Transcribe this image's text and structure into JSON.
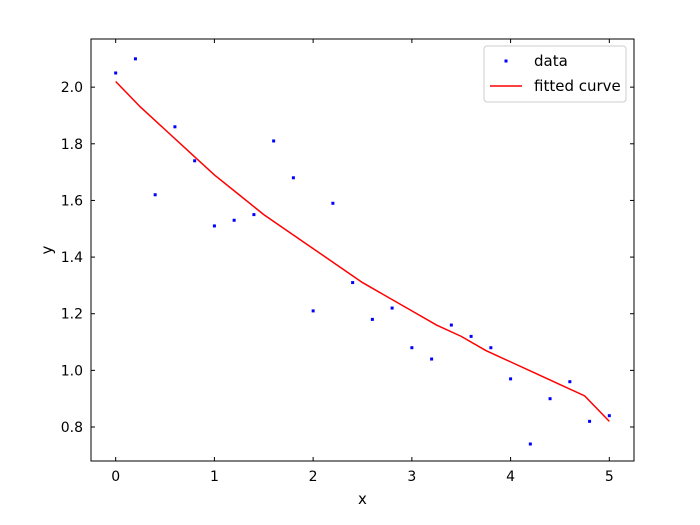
{
  "chart_data": {
    "type": "scatter",
    "xlabel": "x",
    "ylabel": "y",
    "xlim": [
      -0.25,
      5.25
    ],
    "ylim": [
      0.68,
      2.17
    ],
    "xticks": [
      0,
      1,
      2,
      3,
      4,
      5
    ],
    "yticks": [
      0.8,
      1.0,
      1.2,
      1.4,
      1.6,
      1.8,
      2.0
    ],
    "xtick_labels": [
      "0",
      "1",
      "2",
      "3",
      "4",
      "5"
    ],
    "ytick_labels": [
      "0.8",
      "1.0",
      "1.2",
      "1.4",
      "1.6",
      "1.8",
      "2.0"
    ],
    "grid": false,
    "legend_position": "top-right",
    "series": [
      {
        "name": "data",
        "kind": "scatter",
        "color": "#0000ff",
        "x": [
          0.0,
          0.2,
          0.4,
          0.6,
          0.8,
          1.0,
          1.2,
          1.4,
          1.6,
          1.8,
          2.0,
          2.2,
          2.4,
          2.6,
          2.8,
          3.0,
          3.2,
          3.4,
          3.6,
          3.8,
          4.0,
          4.2,
          4.4,
          4.6,
          4.8,
          5.0
        ],
        "y": [
          2.05,
          2.1,
          1.62,
          1.86,
          1.74,
          1.51,
          1.53,
          1.55,
          1.81,
          1.68,
          1.21,
          1.59,
          1.31,
          1.18,
          1.22,
          1.08,
          1.04,
          1.16,
          1.12,
          1.08,
          0.97,
          0.74,
          0.9,
          0.96,
          0.82,
          0.84
        ]
      },
      {
        "name": "fitted curve",
        "kind": "line",
        "color": "#ff0000",
        "x": [
          0.0,
          0.25,
          0.5,
          0.75,
          1.0,
          1.25,
          1.5,
          1.75,
          2.0,
          2.25,
          2.5,
          2.75,
          3.0,
          3.25,
          3.5,
          3.75,
          4.0,
          4.25,
          4.5,
          4.75,
          5.0
        ],
        "y": [
          2.02,
          1.93,
          1.85,
          1.77,
          1.69,
          1.62,
          1.55,
          1.49,
          1.43,
          1.37,
          1.31,
          1.26,
          1.21,
          1.16,
          1.12,
          1.07,
          1.03,
          0.99,
          0.95,
          0.91,
          0.82
        ]
      }
    ]
  }
}
